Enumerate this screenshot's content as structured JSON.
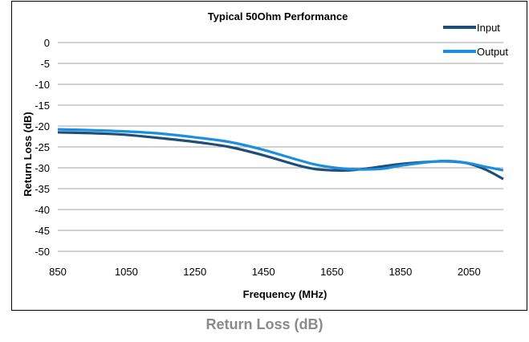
{
  "caption": "Return Loss (dB)",
  "colors": {
    "input": "#1f4e79",
    "output": "#1a8fe0",
    "grid": "#a6a6a6"
  },
  "chart_data": {
    "type": "line",
    "title": "Typical 50Ohm Performance",
    "xlabel": "Frequency (MHz)",
    "ylabel": "Return Loss (dB)",
    "xlim": [
      850,
      2150
    ],
    "ylim": [
      -50,
      0
    ],
    "x_ticks": [
      850,
      1050,
      1250,
      1450,
      1650,
      1850,
      2050
    ],
    "y_ticks": [
      0,
      -5,
      -10,
      -15,
      -20,
      -25,
      -30,
      -35,
      -40,
      -45,
      -50
    ],
    "grid": true,
    "legend_position": "top-right",
    "series": [
      {
        "name": "Input",
        "x": [
          850,
          950,
          1050,
          1150,
          1250,
          1350,
          1450,
          1550,
          1600,
          1650,
          1700,
          1750,
          1850,
          1950,
          2000,
          2050,
          2100,
          2150
        ],
        "y": [
          -21.5,
          -21.7,
          -22.1,
          -22.9,
          -23.8,
          -25.0,
          -27.0,
          -29.4,
          -30.3,
          -30.6,
          -30.6,
          -30.2,
          -29.1,
          -28.5,
          -28.5,
          -29.0,
          -30.5,
          -32.7
        ]
      },
      {
        "name": "Output",
        "x": [
          850,
          950,
          1050,
          1150,
          1250,
          1350,
          1450,
          1550,
          1600,
          1650,
          1700,
          1750,
          1800,
          1850,
          1950,
          2000,
          2050,
          2100,
          2150
        ],
        "y": [
          -20.8,
          -21.0,
          -21.3,
          -21.8,
          -22.7,
          -23.8,
          -25.7,
          -28.1,
          -29.2,
          -29.9,
          -30.3,
          -30.4,
          -30.2,
          -29.5,
          -28.5,
          -28.4,
          -28.9,
          -29.8,
          -30.6
        ]
      }
    ]
  }
}
